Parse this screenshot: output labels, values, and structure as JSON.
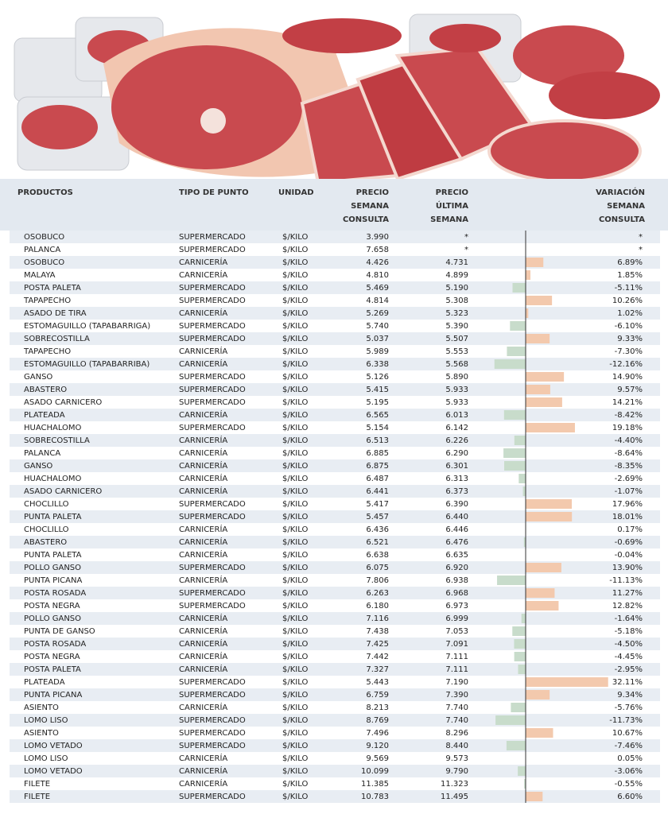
{
  "table": {
    "header": {
      "product": "PRODUCTOS",
      "type": "TIPO DE PUNTO",
      "unit": "UNIDAD",
      "price_now": [
        "PRECIO",
        "SEMANA",
        "CONSULTA"
      ],
      "price_last": [
        "PRECIO",
        "ÚLTIMA",
        "SEMANA"
      ],
      "variation": [
        "VARIACIÓN",
        "SEMANA",
        "CONSULTA"
      ]
    },
    "rows": [
      [
        "OSOBUCO",
        "SUPERMERCADO",
        "$/KILO",
        "3.990",
        "*",
        null,
        "*"
      ],
      [
        "PALANCA",
        "SUPERMERCADO",
        "$/KILO",
        "7.658",
        "*",
        null,
        "*"
      ],
      [
        "OSOBUCO",
        "CARNICERÍA",
        "$/KILO",
        "4.426",
        "4.731",
        6.89,
        "6.89%"
      ],
      [
        "MALAYA",
        "CARNICERÍA",
        "$/KILO",
        "4.810",
        "4.899",
        1.85,
        "1.85%"
      ],
      [
        "POSTA PALETA",
        "SUPERMERCADO",
        "$/KILO",
        "5.469",
        "5.190",
        -5.11,
        "-5.11%"
      ],
      [
        "TAPAPECHO",
        "SUPERMERCADO",
        "$/KILO",
        "4.814",
        "5.308",
        10.26,
        "10.26%"
      ],
      [
        "ASADO DE TIRA",
        "CARNICERÍA",
        "$/KILO",
        "5.269",
        "5.323",
        1.02,
        "1.02%"
      ],
      [
        "ESTOMAGUILLO (TAPABARRIGA)",
        "SUPERMERCADO",
        "$/KILO",
        "5.740",
        "5.390",
        -6.1,
        "-6.10%"
      ],
      [
        "SOBRECOSTILLA",
        "SUPERMERCADO",
        "$/KILO",
        "5.037",
        "5.507",
        9.33,
        "9.33%"
      ],
      [
        "TAPAPECHO",
        "CARNICERÍA",
        "$/KILO",
        "5.989",
        "5.553",
        -7.3,
        "-7.30%"
      ],
      [
        "ESTOMAGUILLO (TAPABARRIBA)",
        "CARNICERÍA",
        "$/KILO",
        "6.338",
        "5.568",
        -12.16,
        "-12.16%"
      ],
      [
        "GANSO",
        "SUPERMERCADO",
        "$/KILO",
        "5.126",
        "5.890",
        14.9,
        "14.90%"
      ],
      [
        "ABASTERO",
        "SUPERMERCADO",
        "$/KILO",
        "5.415",
        "5.933",
        9.57,
        "9.57%"
      ],
      [
        "ASADO CARNICERO",
        "SUPERMERCADO",
        "$/KILO",
        "5.195",
        "5.933",
        14.21,
        "14.21%"
      ],
      [
        "PLATEADA",
        "CARNICERÍA",
        "$/KILO",
        "6.565",
        "6.013",
        -8.42,
        "-8.42%"
      ],
      [
        "HUACHALOMO",
        "SUPERMERCADO",
        "$/KILO",
        "5.154",
        "6.142",
        19.18,
        "19.18%"
      ],
      [
        "SOBRECOSTILLA",
        "CARNICERÍA",
        "$/KILO",
        "6.513",
        "6.226",
        -4.4,
        "-4.40%"
      ],
      [
        "PALANCA",
        "CARNICERÍA",
        "$/KILO",
        "6.885",
        "6.290",
        -8.64,
        "-8.64%"
      ],
      [
        "GANSO",
        "CARNICERÍA",
        "$/KILO",
        "6.875",
        "6.301",
        -8.35,
        "-8.35%"
      ],
      [
        "HUACHALOMO",
        "CARNICERÍA",
        "$/KILO",
        "6.487",
        "6.313",
        -2.69,
        "-2.69%"
      ],
      [
        "ASADO CARNICERO",
        "CARNICERÍA",
        "$/KILO",
        "6.441",
        "6.373",
        -1.07,
        "-1.07%"
      ],
      [
        "CHOCLILLO",
        "SUPERMERCADO",
        "$/KILO",
        "5.417",
        "6.390",
        17.96,
        "17.96%"
      ],
      [
        "PUNTA PALETA",
        "SUPERMERCADO",
        "$/KILO",
        "5.457",
        "6.440",
        18.01,
        "18.01%"
      ],
      [
        "CHOCLILLO",
        "CARNICERÍA",
        "$/KILO",
        "6.436",
        "6.446",
        0.17,
        "0.17%"
      ],
      [
        "ABASTERO",
        "CARNICERÍA",
        "$/KILO",
        "6.521",
        "6.476",
        -0.69,
        "-0.69%"
      ],
      [
        "PUNTA PALETA",
        "CARNICERÍA",
        "$/KILO",
        "6.638",
        "6.635",
        -0.04,
        "-0.04%"
      ],
      [
        "POLLO GANSO",
        "SUPERMERCADO",
        "$/KILO",
        "6.075",
        "6.920",
        13.9,
        "13.90%"
      ],
      [
        "PUNTA PICANA",
        "CARNICERÍA",
        "$/KILO",
        "7.806",
        "6.938",
        -11.13,
        "-11.13%"
      ],
      [
        "POSTA ROSADA",
        "SUPERMERCADO",
        "$/KILO",
        "6.263",
        "6.968",
        11.27,
        "11.27%"
      ],
      [
        "POSTA NEGRA",
        "SUPERMERCADO",
        "$/KILO",
        "6.180",
        "6.973",
        12.82,
        "12.82%"
      ],
      [
        "POLLO GANSO",
        "CARNICERÍA",
        "$/KILO",
        "7.116",
        "6.999",
        -1.64,
        "-1.64%"
      ],
      [
        "PUNTA DE GANSO",
        "CARNICERÍA",
        "$/KILO",
        "7.438",
        "7.053",
        -5.18,
        "-5.18%"
      ],
      [
        "POSTA ROSADA",
        "CARNICERÍA",
        "$/KILO",
        "7.425",
        "7.091",
        -4.5,
        "-4.50%"
      ],
      [
        "POSTA NEGRA",
        "CARNICERÍA",
        "$/KILO",
        "7.442",
        "7.111",
        -4.45,
        "-4.45%"
      ],
      [
        "POSTA PALETA",
        "CARNICERÍA",
        "$/KILO",
        "7.327",
        "7.111",
        -2.95,
        "-2.95%"
      ],
      [
        "PLATEADA",
        "SUPERMERCADO",
        "$/KILO",
        "5.443",
        "7.190",
        32.11,
        "32.11%"
      ],
      [
        "PUNTA PICANA",
        "SUPERMERCADO",
        "$/KILO",
        "6.759",
        "7.390",
        9.34,
        "9.34%"
      ],
      [
        "ASIENTO",
        "CARNICERÍA",
        "$/KILO",
        "8.213",
        "7.740",
        -5.76,
        "-5.76%"
      ],
      [
        "LOMO LISO",
        "SUPERMERCADO",
        "$/KILO",
        "8.769",
        "7.740",
        -11.73,
        "-11.73%"
      ],
      [
        "ASIENTO",
        "SUPERMERCADO",
        "$/KILO",
        "7.496",
        "8.296",
        10.67,
        "10.67%"
      ],
      [
        "LOMO VETADO",
        "SUPERMERCADO",
        "$/KILO",
        "9.120",
        "8.440",
        -7.46,
        "-7.46%"
      ],
      [
        "LOMO LISO",
        "CARNICERÍA",
        "$/KILO",
        "9.569",
        "9.573",
        0.05,
        "0.05%"
      ],
      [
        "LOMO VETADO",
        "CARNICERÍA",
        "$/KILO",
        "10.099",
        "9.790",
        -3.06,
        "-3.06%"
      ],
      [
        "FILETE",
        "CARNICERÍA",
        "$/KILO",
        "11.385",
        "11.323",
        -0.55,
        "-0.55%"
      ],
      [
        "FILETE",
        "SUPERMERCADO",
        "$/KILO",
        "10.783",
        "11.495",
        6.6,
        "6.60%"
      ]
    ]
  }
}
